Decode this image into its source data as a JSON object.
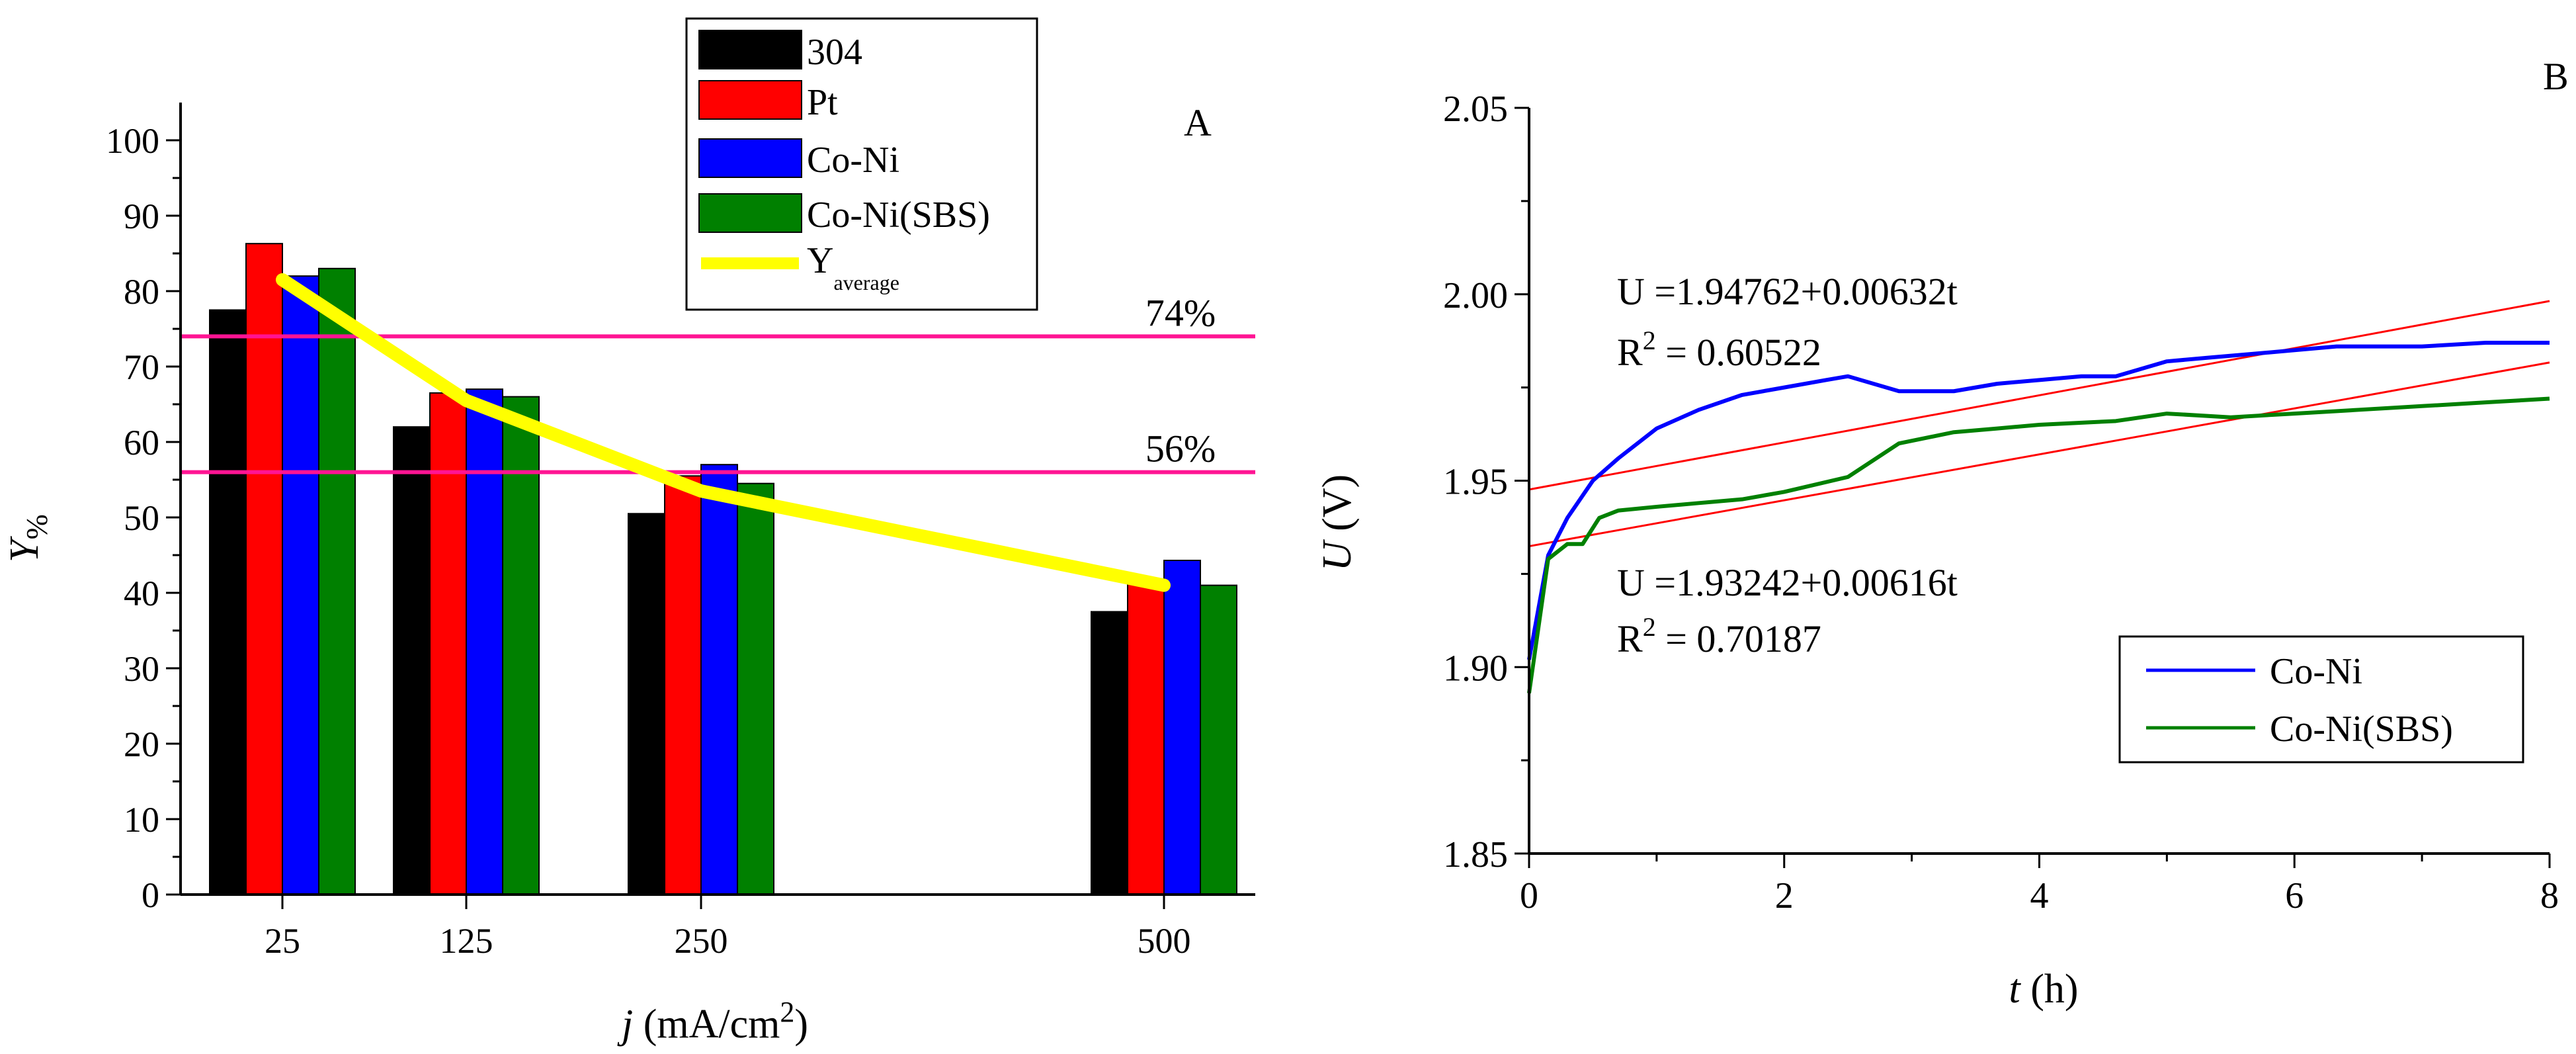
{
  "chart_data": [
    {
      "panel": "A",
      "type": "bar",
      "panel_label": "A",
      "ylabel_main": "Y",
      "ylabel_sub": "%",
      "xlabel_italic": "j",
      "xlabel_text": " (mA/cm",
      "xlabel_sup": "2",
      "xlabel_close": ")",
      "ylim": [
        0,
        105
      ],
      "yticks": [
        0,
        10,
        20,
        30,
        40,
        50,
        60,
        70,
        80,
        90,
        100
      ],
      "categories": [
        "25",
        "125",
        "250",
        "500"
      ],
      "series": [
        {
          "name": "304",
          "color": "#000000",
          "values": [
            77.5,
            62,
            50.5,
            37.5
          ]
        },
        {
          "name": "Pt",
          "color": "#ff0000",
          "values": [
            86.3,
            66.5,
            55.5,
            41.5
          ]
        },
        {
          "name": "Co-Ni",
          "color": "#0000ff",
          "values": [
            82,
            67,
            57,
            44.3
          ]
        },
        {
          "name": "Co-Ni(SBS)",
          "color": "#008000",
          "values": [
            83,
            66,
            54.5,
            41
          ]
        }
      ],
      "average_line": {
        "name_main": "Y",
        "name_sub": "average",
        "color": "#ffff00",
        "values": [
          81.5,
          65.5,
          53.5,
          41
        ]
      },
      "reference_lines": [
        {
          "value": 74,
          "label": "74%",
          "color": "#ff1493"
        },
        {
          "value": 56,
          "label": "56%",
          "color": "#ff1493"
        }
      ]
    },
    {
      "panel": "B",
      "type": "line",
      "panel_label": "B",
      "ylabel_italic": "U",
      "ylabel_text": " (V)",
      "xlabel_italic": "t",
      "xlabel_text": " (h)",
      "xlim": [
        0,
        8
      ],
      "ylim": [
        1.85,
        2.05
      ],
      "xticks": [
        0,
        2,
        4,
        6,
        8
      ],
      "yticks": [
        1.85,
        1.9,
        1.95,
        2.0,
        2.05
      ],
      "ytick_labels": [
        "1.85",
        "1.90",
        "1.95",
        "2.00",
        "2.05"
      ],
      "series": [
        {
          "name": "Co-Ni",
          "color": "#0000ff",
          "x": [
            0,
            0.15,
            0.3,
            0.5,
            0.7,
            1.0,
            1.33,
            1.67,
            2.0,
            2.33,
            2.5,
            2.9,
            3.33,
            3.67,
            4.0,
            4.33,
            4.6,
            5.0,
            5.33,
            5.67,
            6.0,
            6.33,
            6.5,
            7.0,
            7.5,
            8.0
          ],
          "y": [
            1.902,
            1.93,
            1.94,
            1.95,
            1.956,
            1.964,
            1.969,
            1.973,
            1.975,
            1.977,
            1.978,
            1.974,
            1.974,
            1.976,
            1.977,
            1.978,
            1.978,
            1.982,
            1.983,
            1.984,
            1.985,
            1.986,
            1.986,
            1.986,
            1.987,
            1.987
          ]
        },
        {
          "name": "Co-Ni(SBS)",
          "color": "#008000",
          "x": [
            0,
            0.15,
            0.3,
            0.42,
            0.55,
            0.7,
            1.0,
            1.33,
            1.67,
            2.0,
            2.5,
            2.9,
            3.33,
            3.67,
            4.0,
            4.6,
            5.0,
            5.5,
            6.0,
            6.5,
            7.0,
            7.5,
            8.0
          ],
          "y": [
            1.893,
            1.929,
            1.933,
            1.933,
            1.94,
            1.942,
            1.943,
            1.944,
            1.945,
            1.947,
            1.951,
            1.96,
            1.963,
            1.964,
            1.965,
            1.966,
            1.968,
            1.967,
            1.968,
            1.969,
            1.97,
            1.971,
            1.972
          ]
        }
      ],
      "fits": [
        {
          "intercept": 1.94762,
          "slope": 0.00632,
          "color": "#ff0000"
        },
        {
          "intercept": 1.93242,
          "slope": 0.00616,
          "color": "#ff0000"
        }
      ],
      "annotations": [
        {
          "equation": "U =1.94762+0.00632t",
          "r2_prefix": "R",
          "r2_sup": "2",
          "r2_value": " = 0.60522",
          "color": "#0000ff"
        },
        {
          "equation": "U =1.93242+0.00616t",
          "r2_prefix": "R",
          "r2_sup": "2",
          "r2_value": " = 0.70187",
          "color": "#008000"
        }
      ],
      "legend": [
        "Co-Ni",
        "Co-Ni(SBS)"
      ]
    }
  ]
}
